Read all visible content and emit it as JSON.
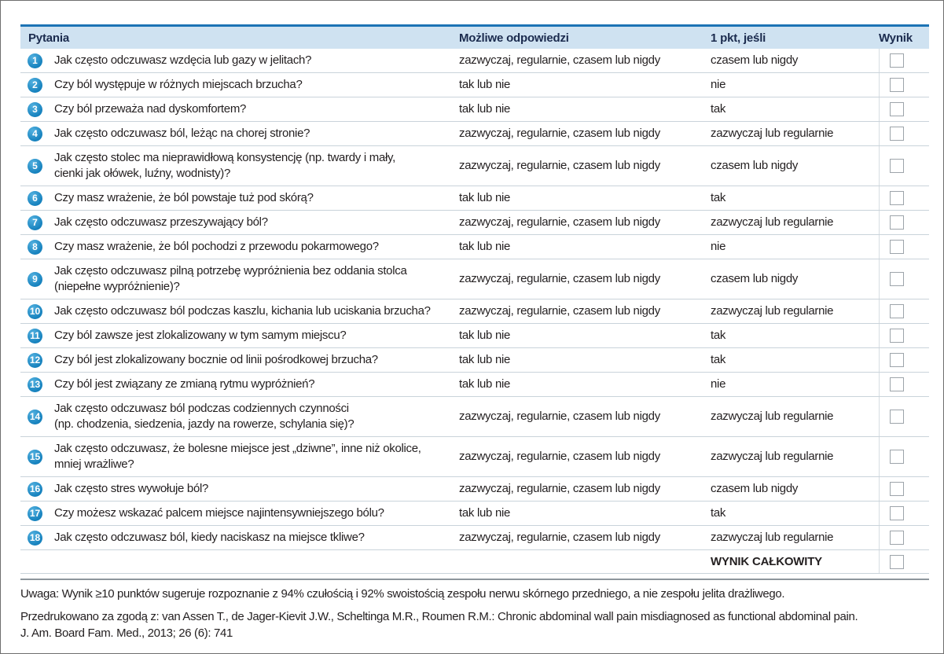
{
  "header": {
    "questions": "Pytania",
    "answers": "Możliwe odpowiedzi",
    "point_if": "1 pkt, jeśli",
    "score": "Wynik"
  },
  "rows": [
    {
      "num": "1",
      "question": "Jak często odczuwasz wzdęcia lub gazy w jelitach?",
      "answers": "zazwyczaj, regularnie, czasem lub nigdy",
      "point_if": "czasem lub nigdy"
    },
    {
      "num": "2",
      "question": "Czy ból występuje w różnych miejscach brzucha?",
      "answers": "tak lub nie",
      "point_if": "nie"
    },
    {
      "num": "3",
      "question": "Czy ból przeważa nad dyskomfortem?",
      "answers": "tak lub nie",
      "point_if": "tak"
    },
    {
      "num": "4",
      "question": "Jak często odczuwasz ból, leżąc na chorej stronie?",
      "answers": "zazwyczaj, regularnie, czasem lub nigdy",
      "point_if": "zazwyczaj lub regularnie"
    },
    {
      "num": "5",
      "question": "Jak często stolec ma nieprawidłową konsystencję (np. twardy i mały,\ncienki jak ołówek, luźny, wodnisty)?",
      "answers": "zazwyczaj, regularnie, czasem lub nigdy",
      "point_if": "czasem lub nigdy"
    },
    {
      "num": "6",
      "question": "Czy masz wrażenie, że ból powstaje tuż pod skórą?",
      "answers": "tak lub nie",
      "point_if": "tak"
    },
    {
      "num": "7",
      "question": "Jak często odczuwasz przeszywający ból?",
      "answers": "zazwyczaj, regularnie, czasem lub nigdy",
      "point_if": "zazwyczaj lub regularnie"
    },
    {
      "num": "8",
      "question": "Czy masz wrażenie, że ból pochodzi z przewodu pokarmowego?",
      "answers": "tak lub nie",
      "point_if": "nie"
    },
    {
      "num": "9",
      "question": "Jak często odczuwasz pilną potrzebę wypróżnienia bez oddania stolca\n(niepełne wypróżnienie)?",
      "answers": "zazwyczaj, regularnie, czasem lub nigdy",
      "point_if": "czasem lub nigdy"
    },
    {
      "num": "10",
      "question": "Jak często odczuwasz ból podczas kaszlu, kichania lub uciskania brzucha?",
      "answers": "zazwyczaj, regularnie, czasem lub nigdy",
      "point_if": "zazwyczaj lub regularnie"
    },
    {
      "num": "11",
      "question": "Czy ból zawsze jest zlokalizowany w tym samym miejscu?",
      "answers": "tak lub nie",
      "point_if": "tak"
    },
    {
      "num": "12",
      "question": "Czy ból jest zlokalizowany bocznie od linii pośrodkowej brzucha?",
      "answers": "tak lub nie",
      "point_if": "tak"
    },
    {
      "num": "13",
      "question": "Czy ból jest związany ze zmianą rytmu wypróżnień?",
      "answers": "tak lub nie",
      "point_if": "nie"
    },
    {
      "num": "14",
      "question": "Jak często odczuwasz ból podczas codziennych czynności\n(np. chodzenia, siedzenia, jazdy na rowerze, schylania się)?",
      "answers": "zazwyczaj, regularnie, czasem lub nigdy",
      "point_if": "zazwyczaj lub regularnie"
    },
    {
      "num": "15",
      "question": "Jak często odczuwasz, że bolesne miejsce jest „dziwne”, inne niż okolice,\nmniej wrażliwe?",
      "answers": "zazwyczaj, regularnie, czasem lub nigdy",
      "point_if": "zazwyczaj lub regularnie"
    },
    {
      "num": "16",
      "question": "Jak często stres wywołuje ból?",
      "answers": "zazwyczaj, regularnie, czasem lub nigdy",
      "point_if": "czasem lub nigdy"
    },
    {
      "num": "17",
      "question": "Czy możesz wskazać palcem miejsce najintensywniejszego bólu?",
      "answers": "tak lub nie",
      "point_if": "tak"
    },
    {
      "num": "18",
      "question": "Jak często odczuwasz ból, kiedy naciskasz na miejsce tkliwe?",
      "answers": "zazwyczaj, regularnie, czasem lub nigdy",
      "point_if": "zazwyczaj lub regularnie"
    }
  ],
  "total_row": {
    "label": "WYNIK CAŁKOWITY"
  },
  "footer": {
    "note": "Uwaga: Wynik ≥10 punktów sugeruje rozpoznanie z 94% czułością i 92% swoistością zespołu nerwu skórnego przedniego, a nie zespołu jelita drażliwego.",
    "source_line1": "Przedrukowano za zgodą z: van Assen T., de Jager-Kievit J.W., Scheltinga M.R., Roumen R.M.: Chronic abdominal wall pain misdiagnosed as functional abdominal pain.",
    "source_line2": "J. Am. Board Fam. Med., 2013; 26 (6): 741"
  },
  "colors": {
    "header_bg": "#cfe2f1",
    "header_top_border": "#1c73b5",
    "badge_blue": "#1581bd",
    "row_separator": "#c9d3da",
    "footer_rule": "#8d969c",
    "text": "#231f20"
  }
}
